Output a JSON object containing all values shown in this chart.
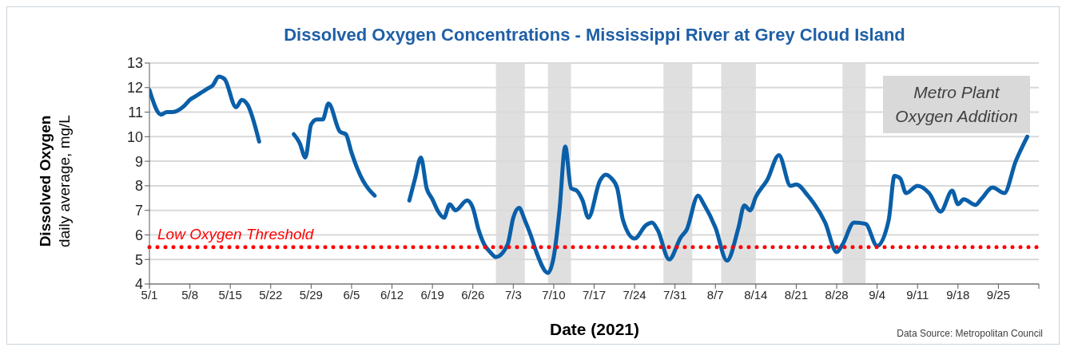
{
  "chart_data": {
    "type": "line",
    "title": "Dissolved Oxygen Concentrations - Mississippi River at Grey Cloud Island",
    "xlabel": "Date (2021)",
    "ylabel": "Dissolved Oxygen\ndaily average, mg/L",
    "x": [
      "2021-05-01",
      "2021-05-03",
      "2021-05-04",
      "2021-05-05",
      "2021-05-07",
      "2021-05-08",
      "2021-05-09",
      "2021-05-11",
      "2021-05-12",
      "2021-05-13",
      "2021-05-14",
      "2021-05-16",
      "2021-05-17",
      "2021-05-18",
      "2021-05-20",
      "2021-05-22",
      "2021-05-26",
      "2021-05-27",
      "2021-05-28",
      "2021-05-29",
      "2021-05-30",
      "2021-05-31",
      "2021-06-01",
      "2021-06-03",
      "2021-06-04",
      "2021-06-05",
      "2021-06-06",
      "2021-06-07",
      "2021-06-08",
      "2021-06-09",
      "2021-06-12",
      "2021-06-15",
      "2021-06-16",
      "2021-06-17",
      "2021-06-18",
      "2021-06-19",
      "2021-06-20",
      "2021-06-21",
      "2021-06-22",
      "2021-06-23",
      "2021-06-25",
      "2021-06-26",
      "2021-06-27",
      "2021-06-28",
      "2021-06-29",
      "2021-06-30",
      "2021-07-02",
      "2021-07-03",
      "2021-07-04",
      "2021-07-05",
      "2021-07-06",
      "2021-07-07",
      "2021-07-09",
      "2021-07-10",
      "2021-07-11",
      "2021-07-12",
      "2021-07-13",
      "2021-07-14",
      "2021-07-15",
      "2021-07-16",
      "2021-07-18",
      "2021-07-19",
      "2021-07-20",
      "2021-07-21",
      "2021-07-22",
      "2021-07-24",
      "2021-07-26",
      "2021-07-27",
      "2021-07-28",
      "2021-07-30",
      "2021-08-01",
      "2021-08-02",
      "2021-08-04",
      "2021-08-05",
      "2021-08-07",
      "2021-08-09",
      "2021-08-11",
      "2021-08-12",
      "2021-08-13",
      "2021-08-14",
      "2021-08-16",
      "2021-08-18",
      "2021-08-20",
      "2021-08-21",
      "2021-08-23",
      "2021-08-26",
      "2021-08-28",
      "2021-08-29",
      "2021-08-31",
      "2021-09-02",
      "2021-09-04",
      "2021-09-06",
      "2021-09-07",
      "2021-09-08",
      "2021-09-09",
      "2021-09-11",
      "2021-09-13",
      "2021-09-15",
      "2021-09-17",
      "2021-09-18",
      "2021-09-19",
      "2021-09-21",
      "2021-09-22",
      "2021-09-24",
      "2021-09-26",
      "2021-09-28",
      "2021-09-30"
    ],
    "series": [
      {
        "color": "#0a5fa8",
        "values": [
          11.9,
          10.9,
          11.0,
          11.0,
          11.25,
          11.5,
          11.65,
          11.95,
          12.1,
          12.45,
          12.35,
          11.2,
          11.5,
          11.3,
          9.8,
          null,
          10.1,
          9.75,
          9.15,
          10.5,
          10.7,
          10.7,
          11.35,
          10.2,
          10.1,
          9.35,
          8.7,
          8.2,
          7.85,
          7.6,
          null,
          7.4,
          8.3,
          9.15,
          7.9,
          7.45,
          6.95,
          6.7,
          7.25,
          7.0,
          7.4,
          7.1,
          6.2,
          5.6,
          5.3,
          5.1,
          5.6,
          6.7,
          7.1,
          6.6,
          6.0,
          5.3,
          4.45,
          5.1,
          7.0,
          9.6,
          7.9,
          7.8,
          7.4,
          6.7,
          8.2,
          8.45,
          8.3,
          7.9,
          6.6,
          5.85,
          6.4,
          6.5,
          6.2,
          5.0,
          5.9,
          6.2,
          7.6,
          7.25,
          6.3,
          4.95,
          6.3,
          7.2,
          7.0,
          7.55,
          8.25,
          9.25,
          8.0,
          8.05,
          7.6,
          6.5,
          5.3,
          5.6,
          6.5,
          6.45,
          5.55,
          6.6,
          8.4,
          8.3,
          7.7,
          8.0,
          7.7,
          6.95,
          7.8,
          7.25,
          7.45,
          7.22,
          7.45,
          7.93,
          7.7,
          9.0,
          10.0
        ]
      }
    ],
    "xlim": [
      "2021-05-01",
      "2021-10-02"
    ],
    "xticks": [
      {
        "value": "2021-05-01",
        "label": "5/1"
      },
      {
        "value": "2021-05-08",
        "label": "5/8"
      },
      {
        "value": "2021-05-15",
        "label": "5/15"
      },
      {
        "value": "2021-05-22",
        "label": "5/22"
      },
      {
        "value": "2021-05-29",
        "label": "5/29"
      },
      {
        "value": "2021-06-05",
        "label": "6/5"
      },
      {
        "value": "2021-06-12",
        "label": "6/12"
      },
      {
        "value": "2021-06-19",
        "label": "6/19"
      },
      {
        "value": "2021-06-26",
        "label": "6/26"
      },
      {
        "value": "2021-07-03",
        "label": "7/3"
      },
      {
        "value": "2021-07-10",
        "label": "7/10"
      },
      {
        "value": "2021-07-17",
        "label": "7/17"
      },
      {
        "value": "2021-07-24",
        "label": "7/24"
      },
      {
        "value": "2021-07-31",
        "label": "7/31"
      },
      {
        "value": "2021-08-07",
        "label": "8/7"
      },
      {
        "value": "2021-08-14",
        "label": "8/14"
      },
      {
        "value": "2021-08-21",
        "label": "8/21"
      },
      {
        "value": "2021-08-28",
        "label": "8/28"
      },
      {
        "value": "2021-09-04",
        "label": "9/4"
      },
      {
        "value": "2021-09-11",
        "label": "9/11"
      },
      {
        "value": "2021-09-18",
        "label": "9/18"
      },
      {
        "value": "2021-09-25",
        "label": "9/25"
      },
      {
        "value": "2021-10-02",
        "label": null
      }
    ],
    "ylim": [
      4,
      13
    ],
    "yticks": [
      4,
      5,
      6,
      7,
      8,
      9,
      10,
      11,
      12,
      13
    ],
    "grid": "y",
    "marker": "none",
    "line_style": "solid",
    "ref_lines": [
      {
        "axis": "y",
        "value": 5.5,
        "label": "Low Oxygen Threshold",
        "color": "#ff0000",
        "line_style": "dotted"
      }
    ],
    "bands": [
      {
        "axis": "x",
        "from": "2021-06-30",
        "to": "2021-07-05",
        "color": "#d9d9d9"
      },
      {
        "axis": "x",
        "from": "2021-07-09",
        "to": "2021-07-13",
        "color": "#d9d9d9"
      },
      {
        "axis": "x",
        "from": "2021-07-29",
        "to": "2021-08-03",
        "color": "#d9d9d9"
      },
      {
        "axis": "x",
        "from": "2021-08-08",
        "to": "2021-08-14",
        "color": "#d9d9d9"
      },
      {
        "axis": "x",
        "from": "2021-08-29",
        "to": "2021-09-02",
        "color": "#d9d9d9"
      }
    ],
    "annotations": [
      "Metro Plant Oxygen Addition",
      "Data Source: Metropolitan Council"
    ]
  }
}
